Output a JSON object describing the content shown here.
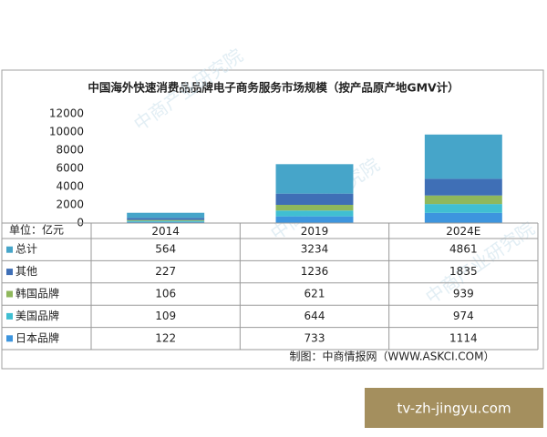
{
  "chart_data": {
    "type": "bar",
    "stacked": true,
    "title": "中国海外快速消费品品牌电子商务服务市场规模（按产品原产地GMV计）",
    "unit_label": "单位：亿元",
    "categories": [
      "2014",
      "2019",
      "2024E"
    ],
    "series": [
      {
        "name": "日本品牌",
        "color": "#3d95de",
        "values": [
          122,
          733,
          1114
        ]
      },
      {
        "name": "美国品牌",
        "color": "#40bfd2",
        "values": [
          109,
          644,
          974
        ]
      },
      {
        "name": "韩国品牌",
        "color": "#8fb85c",
        "values": [
          106,
          621,
          939
        ]
      },
      {
        "name": "其他",
        "color": "#3f6fb6",
        "values": [
          227,
          1236,
          1835
        ]
      },
      {
        "name": "总计",
        "color": "#46a5c9",
        "values": [
          564,
          3234,
          4861
        ]
      }
    ],
    "ylim": [
      0,
      12000
    ],
    "yticks": [
      0,
      2000,
      4000,
      6000,
      8000,
      10000,
      12000
    ],
    "grid": false,
    "source": "制图：中商情报网（WWW.ASKCI.COM）",
    "watermark": "中商产业研究院",
    "overlay_label": "tv-zh-jingyu.com"
  }
}
